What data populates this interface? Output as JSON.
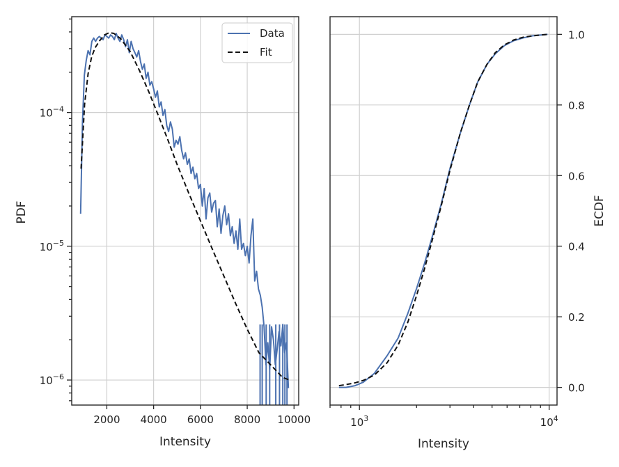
{
  "chart_data": [
    {
      "type": "line",
      "xlabel": "Intensity",
      "ylabel": "PDF",
      "xscale": "linear",
      "yscale": "log",
      "xlim": [
        500,
        10200
      ],
      "ylim": [
        6.5e-07,
        0.00052
      ],
      "xticks": [
        2000,
        4000,
        6000,
        8000,
        10000
      ],
      "xtick_labels": [
        "2000",
        "4000",
        "6000",
        "8000",
        "10000"
      ],
      "yticks": [
        1e-06,
        1e-05,
        0.0001
      ],
      "ytick_labels": [
        {
          "base": "10",
          "exp": "−6"
        },
        {
          "base": "10",
          "exp": "−5"
        },
        {
          "base": "10",
          "exp": "−4"
        }
      ],
      "grid": true,
      "legend": {
        "position": "top-right",
        "entries": [
          "Data",
          "Fit"
        ]
      },
      "series": [
        {
          "name": "Data",
          "color": "#4c72b0",
          "style": "solid",
          "x": [
            880,
            960,
            1040,
            1120,
            1200,
            1280,
            1360,
            1440,
            1520,
            1600,
            1680,
            1760,
            1840,
            1920,
            2000,
            2080,
            2160,
            2240,
            2320,
            2400,
            2480,
            2560,
            2640,
            2720,
            2800,
            2880,
            2960,
            3040,
            3120,
            3200,
            3280,
            3360,
            3440,
            3520,
            3600,
            3680,
            3760,
            3840,
            3920,
            4000,
            4080,
            4160,
            4240,
            4320,
            4400,
            4480,
            4560,
            4640,
            4720,
            4800,
            4880,
            4960,
            5040,
            5120,
            5200,
            5280,
            5360,
            5440,
            5520,
            5600,
            5680,
            5760,
            5840,
            5920,
            6000,
            6080,
            6160,
            6240,
            6320,
            6400,
            6480,
            6560,
            6640,
            6720,
            6800,
            6880,
            6960,
            7040,
            7120,
            7200,
            7280,
            7360,
            7440,
            7520,
            7600,
            7680,
            7760,
            7840,
            7920,
            8000,
            8080,
            8160,
            8240,
            8320,
            8400,
            8480,
            8560,
            8640,
            8720,
            8800,
            8880,
            8960,
            9040,
            9120,
            9200,
            9280,
            9360,
            9440,
            9520,
            9600,
            9680,
            9760
          ],
          "y": [
            1.75e-05,
            8.5e-05,
            0.00019,
            0.000245,
            0.00029,
            0.00027,
            0.00034,
            0.00036,
            0.00034,
            0.00036,
            0.00037,
            0.00036,
            0.00035,
            0.00038,
            0.00037,
            0.00036,
            0.00038,
            0.00037,
            0.00035,
            0.00039,
            0.00036,
            0.00034,
            0.00038,
            0.00035,
            0.00031,
            0.00035,
            0.00028,
            0.00034,
            0.0003,
            0.00028,
            0.00026,
            0.00029,
            0.00024,
            0.00021,
            0.00023,
            0.00018,
            0.0002,
            0.00016,
            0.00017,
            0.00015,
            0.00013,
            0.000145,
            0.00011,
            0.00012,
            9.5e-05,
            0.000105,
            8e-05,
            7.2e-05,
            8.5e-05,
            7.5e-05,
            5.5e-05,
            6.2e-05,
            5.8e-05,
            6.6e-05,
            5.2e-05,
            4.5e-05,
            5e-05,
            4.1e-05,
            4.5e-05,
            3.5e-05,
            3.9e-05,
            3.2e-05,
            3.5e-05,
            2.7e-05,
            2.9e-05,
            2e-05,
            2.7e-05,
            1.6e-05,
            2.3e-05,
            2.5e-05,
            1.8e-05,
            2.1e-05,
            2.2e-05,
            1.4e-05,
            1.9e-05,
            1.25e-05,
            1.7e-05,
            2e-05,
            1.45e-05,
            1.75e-05,
            1.2e-05,
            1.4e-05,
            1.05e-05,
            1.3e-05,
            9.5e-06,
            1.6e-05,
            9.5e-06,
            1.05e-05,
            8.5e-06,
            1e-05,
            7.5e-06,
            1.2e-05,
            1.6e-05,
            5.5e-06,
            6.5e-06,
            4.8e-06,
            4.3e-06,
            3.5e-06,
            2.5e-06,
            1.3e-06,
            1.9e-06,
            1.2e-06,
            2.5e-06,
            2e-06,
            1.3e-06,
            1.7e-06,
            2.3e-06,
            1.8e-06,
            2.6e-06,
            1.6e-06,
            1.9e-06,
            8.7e-07
          ],
          "drops_to_zero_x": [
            8550,
            8640,
            8810,
            8960,
            9220,
            9380,
            9520,
            9610,
            9700
          ]
        },
        {
          "name": "Fit",
          "color": "#111111",
          "style": "dashed",
          "x": [
            900,
            1050,
            1200,
            1350,
            1500,
            1700,
            1900,
            2100,
            2300,
            2600,
            3000,
            3400,
            3800,
            4200,
            4600,
            5000,
            5500,
            6000,
            6500,
            7000,
            7500,
            8000,
            8500,
            9000,
            9500,
            9800
          ],
          "y": [
            3.8e-05,
            0.000115,
            0.000195,
            0.00026,
            0.000305,
            0.000345,
            0.00038,
            0.000395,
            0.00039,
            0.000355,
            0.000285,
            0.000205,
            0.000142,
            9.5e-05,
            6.3e-05,
            4.1e-05,
            2.5e-05,
            1.55e-05,
            9.6e-06,
            6e-06,
            3.75e-06,
            2.4e-06,
            1.6e-06,
            1.3e-06,
            1.05e-06,
            1e-06
          ]
        }
      ]
    },
    {
      "type": "line",
      "xlabel": "Intensity",
      "ylabel": "ECDF",
      "xscale": "log",
      "yscale": "linear",
      "xlim": [
        700,
        11000
      ],
      "ylim": [
        -0.05,
        1.05
      ],
      "xticks": [
        1000,
        10000
      ],
      "xtick_labels": [
        {
          "base": "10",
          "exp": "3"
        },
        {
          "base": "10",
          "exp": "4"
        }
      ],
      "yticks": [
        0.0,
        0.2,
        0.4,
        0.6,
        0.8,
        1.0
      ],
      "ytick_labels": [
        "0.0",
        "0.2",
        "0.4",
        "0.6",
        "0.8",
        "1.0"
      ],
      "y_axis_side": "right",
      "grid": true,
      "series": [
        {
          "name": "Data",
          "color": "#4c72b0",
          "style": "solid",
          "x": [
            780,
            850,
            950,
            1050,
            1200,
            1400,
            1600,
            1800,
            2000,
            2200,
            2400,
            2700,
            3000,
            3400,
            3800,
            4200,
            4700,
            5200,
            5800,
            6500,
            7300,
            8200,
            9000,
            9800
          ],
          "y": [
            0.0,
            0.0,
            0.005,
            0.015,
            0.04,
            0.09,
            0.14,
            0.21,
            0.28,
            0.35,
            0.42,
            0.52,
            0.62,
            0.72,
            0.8,
            0.865,
            0.915,
            0.945,
            0.968,
            0.982,
            0.99,
            0.996,
            0.998,
            1.0
          ]
        },
        {
          "name": "Fit",
          "color": "#111111",
          "style": "dashed",
          "x": [
            780,
            850,
            950,
            1050,
            1200,
            1400,
            1600,
            1800,
            2000,
            2200,
            2400,
            2700,
            3000,
            3400,
            3800,
            4200,
            4700,
            5200,
            5800,
            6500,
            7300,
            8200,
            9000,
            9800
          ],
          "y": [
            0.005,
            0.008,
            0.013,
            0.02,
            0.035,
            0.07,
            0.12,
            0.185,
            0.26,
            0.335,
            0.41,
            0.515,
            0.615,
            0.72,
            0.8,
            0.865,
            0.915,
            0.948,
            0.97,
            0.984,
            0.992,
            0.996,
            0.998,
            1.0
          ]
        }
      ]
    }
  ]
}
